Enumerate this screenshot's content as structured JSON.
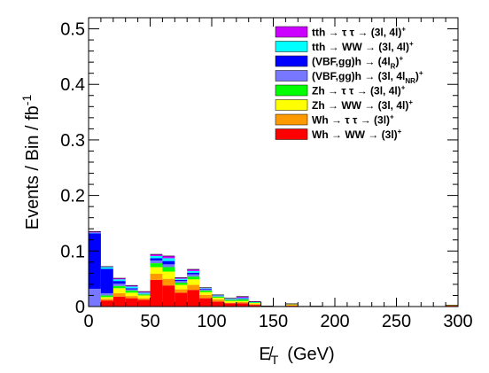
{
  "chart_data": {
    "type": "bar",
    "stacked": true,
    "xlabel": "E̸T (GeV)",
    "xlabel_main": "E̸",
    "xlabel_sub": "T",
    "xlabel_unit": "(GeV)",
    "ylabel": "Events / Bin / fb⁻¹",
    "ylabel_main": "Events / Bin / fb",
    "ylabel_sup": "-1",
    "xlim": [
      0,
      300
    ],
    "ylim": [
      0,
      0.52
    ],
    "x_ticks": [
      0,
      50,
      100,
      150,
      200,
      250,
      300
    ],
    "y_ticks": [
      0,
      0.1,
      0.2,
      0.3,
      0.4,
      0.5
    ],
    "x_tick_labels": [
      "0",
      "50",
      "100",
      "150",
      "200",
      "250",
      "300"
    ],
    "y_tick_labels": [
      "0",
      "0.1",
      "0.2",
      "0.3",
      "0.4",
      "0.5"
    ],
    "bin_width": 10,
    "bin_starts": [
      0,
      10,
      20,
      30,
      40,
      50,
      60,
      70,
      80,
      90,
      100,
      110,
      120,
      130,
      140,
      150,
      160,
      170,
      180,
      190,
      200,
      210,
      220,
      230,
      240,
      250,
      260,
      270,
      280,
      290
    ],
    "legend_position": "top-right",
    "series": [
      {
        "name": "Wh → WW → (3l)⁺",
        "color": "#ff0000",
        "values": [
          0,
          0.011,
          0.018,
          0.015,
          0.012,
          0.048,
          0.038,
          0.025,
          0.03,
          0.015,
          0.009,
          0.006,
          0.006,
          0.003,
          0.001,
          0.0005,
          0.0015,
          0.0005,
          0.0008,
          0,
          0,
          0,
          0,
          0,
          0,
          0,
          0,
          0,
          0,
          0.0015
        ]
      },
      {
        "name": "Wh → τ τ → (3l)⁺",
        "color": "#ff9900",
        "values": [
          0,
          0.003,
          0.006,
          0.004,
          0.003,
          0.011,
          0.012,
          0.006,
          0.009,
          0.006,
          0.004,
          0.001,
          0.002,
          0.0015,
          0,
          0,
          0.001,
          0,
          0,
          0,
          0,
          0,
          0,
          0,
          0,
          0,
          0,
          0,
          0,
          0
        ]
      },
      {
        "name": "Zh → WW → (3l, 4l)⁺",
        "color": "#ffff00",
        "values": [
          0,
          0.003,
          0.009,
          0.006,
          0.005,
          0.012,
          0.013,
          0.008,
          0.01,
          0.005,
          0.003,
          0.003,
          0.002,
          0.002,
          0,
          0,
          0.0015,
          0,
          0,
          0,
          0,
          0,
          0,
          0,
          0,
          0,
          0,
          0,
          0,
          0.001
        ]
      },
      {
        "name": "Zh → τ τ → (3l, 4l)⁺",
        "color": "#00ff00",
        "values": [
          0,
          0.003,
          0.004,
          0.004,
          0.002,
          0.007,
          0.008,
          0.004,
          0.005,
          0.003,
          0.002,
          0.002,
          0.003,
          0.001,
          0,
          0,
          0.0005,
          0,
          0,
          0,
          0,
          0,
          0,
          0,
          0,
          0,
          0,
          0,
          0,
          0
        ]
      },
      {
        "name": "(VBF,gg)h → (3l, 4l_NR)⁺",
        "color": "#7777ff",
        "values": [
          0.032,
          0.004,
          0.004,
          0.002,
          0.001,
          0.005,
          0.005,
          0.003,
          0.004,
          0.002,
          0.001,
          0.001,
          0.001,
          0,
          0,
          0,
          0,
          0,
          0,
          0,
          0,
          0,
          0,
          0,
          0,
          0,
          0,
          0,
          0,
          0
        ]
      },
      {
        "name": "(VBF,gg)h → (4l_R)⁺",
        "color": "#0000ff",
        "values": [
          0.1,
          0.044,
          0.005,
          0.002,
          0,
          0.004,
          0.006,
          0.002,
          0.003,
          0.001,
          0,
          0,
          0.001,
          0,
          0,
          0,
          0,
          0,
          0,
          0,
          0,
          0,
          0,
          0,
          0,
          0,
          0,
          0,
          0,
          0
        ]
      },
      {
        "name": "tth → WW → (3l, 4l)⁺",
        "color": "#00ffff",
        "values": [
          0.001,
          0.003,
          0.003,
          0.003,
          0.002,
          0.004,
          0.005,
          0.002,
          0.003,
          0.001,
          0.001,
          0.001,
          0.001,
          0.0005,
          0,
          0,
          0,
          0,
          0,
          0,
          0,
          0,
          0,
          0,
          0,
          0,
          0,
          0,
          0,
          0
        ]
      },
      {
        "name": "tth → τ τ → (3l, 4l)⁺",
        "color": "#cc00ff",
        "values": [
          0.002,
          0.001,
          0.002,
          0.002,
          0.002,
          0.003,
          0.004,
          0.002,
          0.003,
          0.001,
          0.001,
          0.001,
          0.002,
          0.001,
          0,
          0,
          0.0005,
          0,
          0,
          0,
          0,
          0,
          0,
          0,
          0,
          0,
          0,
          0,
          0,
          0
        ]
      }
    ],
    "legend": [
      {
        "label_pre": "tth → τ τ → (3l, 4l)",
        "label_sup": "+",
        "label_sub": "",
        "label_post": "",
        "color": "#cc00ff"
      },
      {
        "label_pre": "tth → WW → (3l, 4l)",
        "label_sup": "+",
        "label_sub": "",
        "label_post": "",
        "color": "#00ffff"
      },
      {
        "label_pre": "(VBF,gg)h → (4l",
        "label_sub": "R",
        "label_post": ")",
        "label_sup": "+",
        "color": "#0000ff"
      },
      {
        "label_pre": "(VBF,gg)h → (3l, 4l",
        "label_sub": "NR",
        "label_post": ")",
        "label_sup": "+",
        "color": "#7777ff"
      },
      {
        "label_pre": "Zh → τ τ → (3l, 4l)",
        "label_sup": "+",
        "label_sub": "",
        "label_post": "",
        "color": "#00ff00"
      },
      {
        "label_pre": "Zh → WW → (3l, 4l)",
        "label_sup": "+",
        "label_sub": "",
        "label_post": "",
        "color": "#ffff00"
      },
      {
        "label_pre": "Wh → τ τ → (3l)",
        "label_sup": "+",
        "label_sub": "",
        "label_post": "",
        "color": "#ff9900"
      },
      {
        "label_pre": "Wh → WW → (3l)",
        "label_sup": "+",
        "label_sub": "",
        "label_post": "",
        "color": "#ff0000"
      }
    ]
  }
}
